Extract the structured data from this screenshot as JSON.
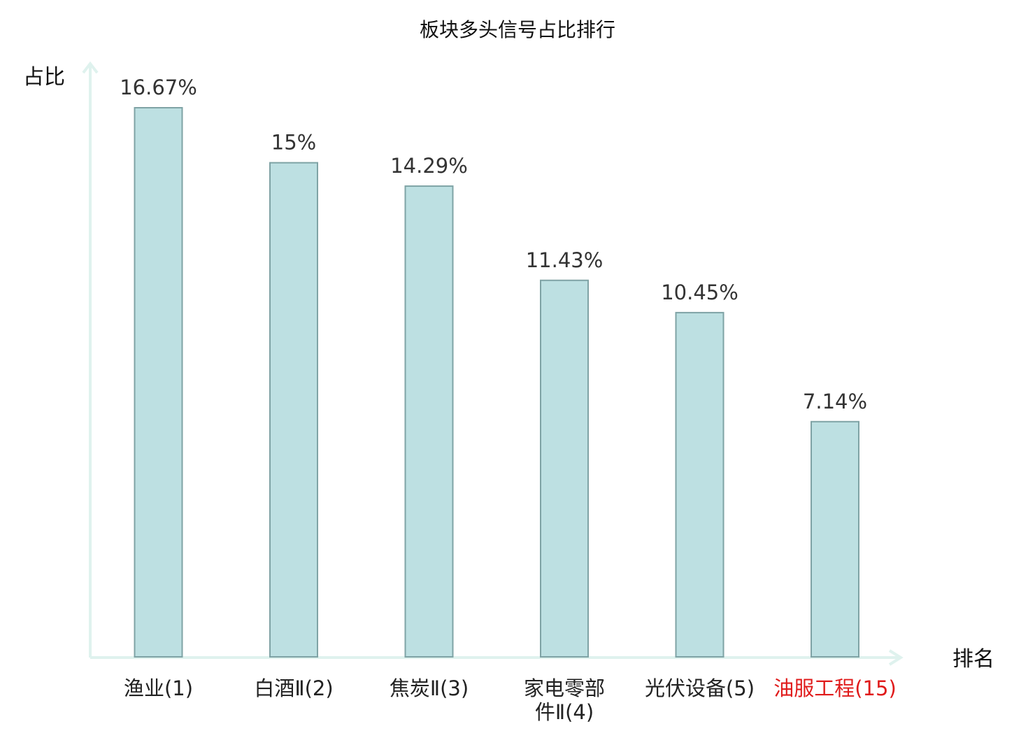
{
  "chart_data": {
    "type": "bar",
    "title": "板块多头信号占比排行",
    "ylabel": "占比",
    "xlabel": "排名",
    "categories": [
      {
        "lines": [
          "渔业(1)"
        ],
        "highlight": false
      },
      {
        "lines": [
          "白酒Ⅱ(2)"
        ],
        "highlight": false
      },
      {
        "lines": [
          "焦炭Ⅱ(3)"
        ],
        "highlight": false
      },
      {
        "lines": [
          "家电零部",
          "件Ⅱ(4)"
        ],
        "highlight": false
      },
      {
        "lines": [
          "光伏设备(5)"
        ],
        "highlight": false
      },
      {
        "lines": [
          "油服工程(15)"
        ],
        "highlight": true
      }
    ],
    "values": [
      16.67,
      15,
      14.29,
      11.43,
      10.45,
      7.14
    ],
    "value_labels": [
      "16.67%",
      "15%",
      "14.29%",
      "11.43%",
      "10.45%",
      "7.14%"
    ],
    "ylim": [
      0,
      16.67
    ],
    "grid": false,
    "legend": "none",
    "colors": {
      "bar_fill": "#bde0e2",
      "bar_stroke": "#7fa3a5",
      "axis": "#dff2ee",
      "label_text": "#222222",
      "value_text": "#333333",
      "highlight_text": "#e01b1b"
    }
  }
}
